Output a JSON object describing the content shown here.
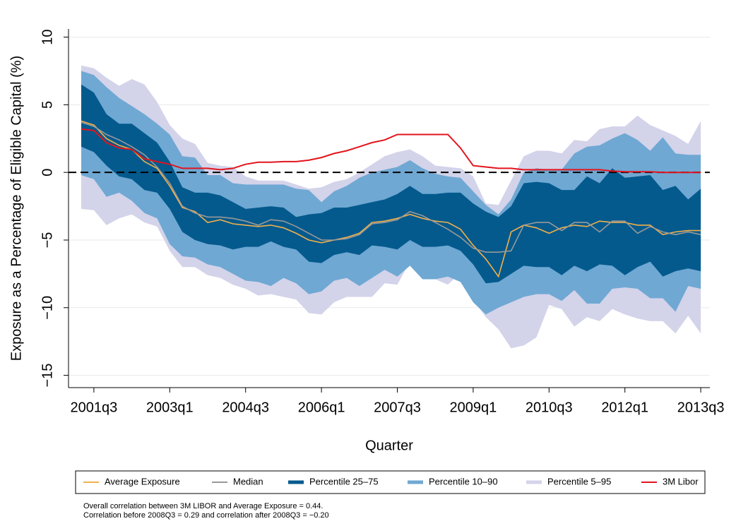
{
  "chart_data": {
    "type": "band-line",
    "x_label": "Quarter",
    "y_label": "Exposure as a Percentage of Eligible Capital (%)",
    "categories": [
      "2001q2",
      "2001q3",
      "2001q4",
      "2002q1",
      "2002q2",
      "2002q3",
      "2002q4",
      "2003q1",
      "2003q2",
      "2003q3",
      "2003q4",
      "2004q1",
      "2004q2",
      "2004q3",
      "2004q4",
      "2005q1",
      "2005q2",
      "2005q3",
      "2005q4",
      "2006q1",
      "2006q2",
      "2006q3",
      "2006q4",
      "2007q1",
      "2007q2",
      "2007q3",
      "2007q4",
      "2008q1",
      "2008q2",
      "2008q3",
      "2008q4",
      "2009q1",
      "2009q2",
      "2009q3",
      "2009q4",
      "2010q1",
      "2010q2",
      "2010q3",
      "2010q4",
      "2011q1",
      "2011q2",
      "2011q3",
      "2011q4",
      "2012q1",
      "2012q2",
      "2012q3",
      "2012q4",
      "2013q1",
      "2013q2",
      "2013q3"
    ],
    "xticks": [
      "2001q3",
      "2003q1",
      "2004q3",
      "2006q1",
      "2007q3",
      "2009q1",
      "2010q3",
      "2012q1",
      "2013q3"
    ],
    "ylim": [
      -15.7,
      10.5
    ],
    "yticks": [
      {
        "value": -15,
        "label": "−15"
      },
      {
        "value": -10,
        "label": "−10"
      },
      {
        "value": -5,
        "label": "−5"
      },
      0,
      5,
      10
    ],
    "reference_line": 0,
    "series": [
      {
        "name": "Average Exposure",
        "style": "line",
        "color": "#f2b04c",
        "values": [
          3.8,
          3.5,
          2.5,
          2.0,
          1.7,
          0.8,
          0.3,
          -1.0,
          -2.6,
          -2.9,
          -3.7,
          -3.5,
          -3.8,
          -3.9,
          -4.0,
          -3.9,
          -4.1,
          -4.5,
          -5.0,
          -5.2,
          -5.0,
          -4.8,
          -4.5,
          -3.7,
          -3.6,
          -3.4,
          -3.1,
          -3.4,
          -3.6,
          -3.7,
          -4.2,
          -5.4,
          -6.4,
          -7.7,
          -4.4,
          -3.9,
          -4.1,
          -4.5,
          -4.1,
          -3.9,
          -4.0,
          -3.6,
          -3.7,
          -3.7,
          -3.9,
          -3.9,
          -4.6,
          -4.4,
          -4.3,
          -4.3
        ]
      },
      {
        "name": "Median",
        "style": "line",
        "color": "#999999",
        "values": [
          3.7,
          3.4,
          2.8,
          2.4,
          1.9,
          1.3,
          0.4,
          -0.8,
          -2.5,
          -3.0,
          -3.3,
          -3.3,
          -3.4,
          -3.6,
          -3.9,
          -3.5,
          -3.6,
          -4.0,
          -4.5,
          -5.0,
          -5.0,
          -4.9,
          -4.6,
          -3.8,
          -3.7,
          -3.5,
          -2.9,
          -3.2,
          -3.7,
          -4.2,
          -4.8,
          -5.6,
          -5.9,
          -5.9,
          -5.8,
          -3.9,
          -3.7,
          -3.7,
          -4.3,
          -3.7,
          -3.7,
          -4.4,
          -3.6,
          -3.6,
          -4.5,
          -4.0,
          -4.4,
          -4.6,
          -4.4,
          -4.6
        ]
      },
      {
        "name": "Percentile 25–75",
        "style": "band",
        "color": "#045a8d",
        "values": [
          6.5,
          5.9,
          4.3,
          3.6,
          3.6,
          2.9,
          2.2,
          0.8,
          -1.1,
          -1.5,
          -1.5,
          -1.7,
          -2.2,
          -2.7,
          -2.6,
          -2.5,
          -2.6,
          -3.3,
          -3.1,
          -3.0,
          -2.6,
          -2.6,
          -2.4,
          -2.2,
          -2.0,
          -1.6,
          -1.0,
          -1.6,
          -1.6,
          -1.5,
          -1.5,
          -2.3,
          -2.9,
          -3.3,
          -2.5,
          -0.8,
          -0.7,
          -0.8,
          -1.3,
          -1.3,
          -0.3,
          -0.8,
          0.3,
          -0.4,
          -0.3,
          -0.2,
          -1.3,
          -1.0,
          -2.0,
          -1.2
        ],
        "lower": [
          1.9,
          1.5,
          0.5,
          -0.3,
          -0.5,
          -1.3,
          -1.5,
          -2.7,
          -4.4,
          -5.0,
          -5.3,
          -5.4,
          -5.7,
          -5.5,
          -5.5,
          -5.1,
          -5.5,
          -5.7,
          -6.6,
          -6.7,
          -6.1,
          -5.9,
          -6.1,
          -5.4,
          -5.5,
          -5.7,
          -5.0,
          -5.5,
          -5.5,
          -5.4,
          -5.8,
          -6.8,
          -8.2,
          -8.1,
          -7.5,
          -6.9,
          -7.0,
          -7.0,
          -7.6,
          -6.9,
          -7.3,
          -6.8,
          -6.9,
          -7.6,
          -7.0,
          -6.6,
          -7.7,
          -7.3,
          -7.1,
          -7.3
        ]
      },
      {
        "name": "Percentile 10–90",
        "style": "band",
        "color": "#6fa8d3",
        "values": [
          7.5,
          7.2,
          6.3,
          5.5,
          4.9,
          4.3,
          3.6,
          2.8,
          1.2,
          1.1,
          -0.2,
          -0.2,
          -0.8,
          -0.9,
          -0.9,
          -0.9,
          -0.9,
          -1.2,
          -1.3,
          -2.2,
          -1.4,
          -1.0,
          -0.4,
          0.0,
          0.2,
          0.4,
          0.9,
          0.3,
          -0.1,
          -0.3,
          -0.4,
          -1.4,
          -2.4,
          -3.1,
          -2.0,
          0.0,
          0.3,
          0.2,
          0.2,
          1.4,
          1.9,
          2.0,
          2.5,
          2.9,
          2.4,
          1.6,
          2.6,
          1.4,
          1.3,
          1.3
        ],
        "lower": [
          -0.2,
          -0.5,
          -1.8,
          -1.5,
          -2.1,
          -3.0,
          -3.4,
          -5.3,
          -6.2,
          -6.3,
          -6.8,
          -7.0,
          -7.5,
          -8.0,
          -8.1,
          -8.4,
          -7.8,
          -8.2,
          -9.0,
          -8.8,
          -8.0,
          -7.8,
          -8.4,
          -7.8,
          -7.2,
          -7.7,
          -6.9,
          -7.9,
          -7.9,
          -7.7,
          -8.1,
          -9.6,
          -10.5,
          -10.0,
          -9.6,
          -9.2,
          -9.0,
          -9.0,
          -9.5,
          -8.7,
          -9.7,
          -9.7,
          -8.6,
          -8.5,
          -8.6,
          -9.3,
          -9.3,
          -10.3,
          -8.4,
          -8.6
        ]
      },
      {
        "name": "Percentile 5–95",
        "style": "band",
        "color": "#d3d3ea",
        "values": [
          7.9,
          7.7,
          7.0,
          6.4,
          6.9,
          6.5,
          5.2,
          3.5,
          2.5,
          2.1,
          0.7,
          0.5,
          0.4,
          -0.3,
          -0.6,
          -0.6,
          -0.6,
          -0.9,
          -1.2,
          -1.1,
          -0.7,
          -0.5,
          0.0,
          0.6,
          1.2,
          1.5,
          1.7,
          1.2,
          0.5,
          0.4,
          0.3,
          -0.3,
          -2.3,
          -2.4,
          -0.6,
          1.2,
          1.6,
          1.6,
          1.4,
          2.4,
          2.3,
          3.2,
          3.4,
          3.4,
          4.2,
          3.5,
          3.1,
          2.7,
          2.1,
          3.8
        ],
        "lower": [
          -2.7,
          -2.8,
          -3.9,
          -3.4,
          -3.1,
          -3.7,
          -4.0,
          -5.8,
          -7.0,
          -7.0,
          -7.6,
          -7.8,
          -8.3,
          -8.6,
          -9.1,
          -9.0,
          -9.2,
          -9.4,
          -10.4,
          -10.5,
          -9.6,
          -9.2,
          -9.2,
          -9.2,
          -8.2,
          -8.3,
          -6.6,
          -7.4,
          -7.9,
          -8.3,
          -7.4,
          -9.4,
          -10.7,
          -11.6,
          -13.0,
          -12.8,
          -12.2,
          -9.8,
          -10.1,
          -11.4,
          -10.7,
          -11.0,
          -10.1,
          -10.5,
          -10.8,
          -11.0,
          -11.0,
          -11.9,
          -10.6,
          -11.9
        ]
      },
      {
        "name": "3M Libor",
        "style": "line",
        "color": "#e3141c",
        "values": [
          3.2,
          3.1,
          2.2,
          1.8,
          1.7,
          1.0,
          0.8,
          0.6,
          0.3,
          0.3,
          0.3,
          0.2,
          0.3,
          0.6,
          0.75,
          0.75,
          0.8,
          0.8,
          0.9,
          1.1,
          1.4,
          1.6,
          1.9,
          2.2,
          2.4,
          2.8,
          2.8,
          2.8,
          2.8,
          2.8,
          1.8,
          0.5,
          0.4,
          0.3,
          0.3,
          0.2,
          0.2,
          0.2,
          0.2,
          0.2,
          0.2,
          0.2,
          0.1,
          0.05,
          0.05,
          0.05,
          0.0,
          0.0,
          0.0,
          0.0
        ]
      }
    ],
    "notes": [
      "Overall correlation between 3M LIBOR and Average Exposure = 0.44.",
      "Correlation before 2008Q3 = 0.29 and correlation after 2008Q3 = −0.20"
    ]
  }
}
